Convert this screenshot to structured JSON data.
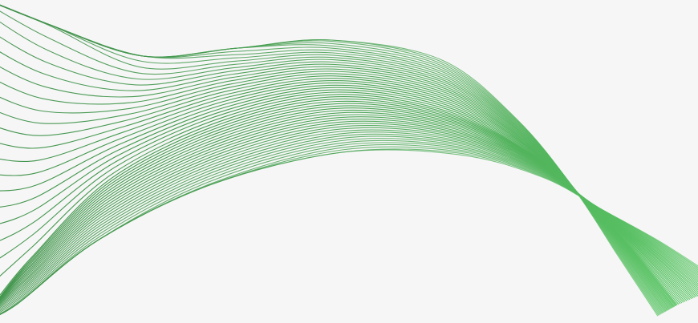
{
  "background": {
    "color": "#f6f6f6"
  },
  "artwork": {
    "kind": "wave-line-pattern",
    "line_count": 52,
    "colors": {
      "dark": "#3f8f4a",
      "mid": "#4aa554",
      "light": "#5bc866"
    }
  }
}
